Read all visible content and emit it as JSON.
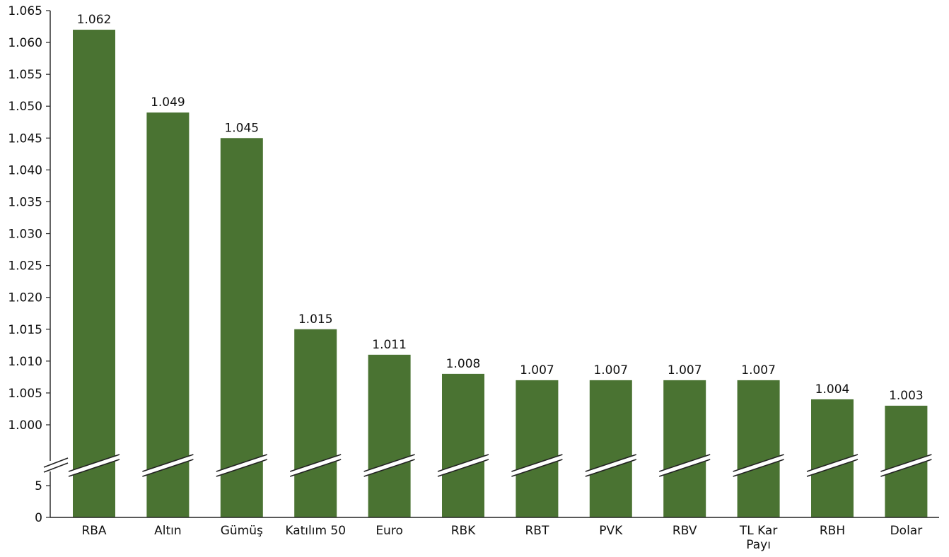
{
  "chart_data": {
    "type": "bar",
    "title": "",
    "xlabel": "",
    "ylabel": "",
    "categories": [
      "RBA",
      "Altın",
      "Gümüş",
      "Katılım 50",
      "Euro",
      "RBK",
      "RBT",
      "PVK",
      "RBV",
      "TL Kar Payı",
      "RBH",
      "Dolar"
    ],
    "values": [
      1.062,
      1.049,
      1.045,
      1.015,
      1.011,
      1.008,
      1.007,
      1.007,
      1.007,
      1.007,
      1.004,
      1.003
    ],
    "data_labels": [
      "1.062",
      "1.049",
      "1.045",
      "1.015",
      "1.011",
      "1.008",
      "1.007",
      "1.007",
      "1.007",
      "1.007",
      "1.004",
      "1.003"
    ],
    "axis_break": true,
    "y_ticks_upper": [
      "1.000",
      "1.005",
      "1.010",
      "1.015",
      "1.020",
      "1.025",
      "1.030",
      "1.035",
      "1.040",
      "1.045",
      "1.050",
      "1.055",
      "1.060",
      "1.065"
    ],
    "y_ticks_lower": [
      "0",
      "5"
    ],
    "ylim_upper": [
      1.0,
      1.065
    ],
    "ylim_lower": [
      0,
      5
    ],
    "grid": false,
    "legend": "none",
    "bar_color": "#4a7332"
  }
}
